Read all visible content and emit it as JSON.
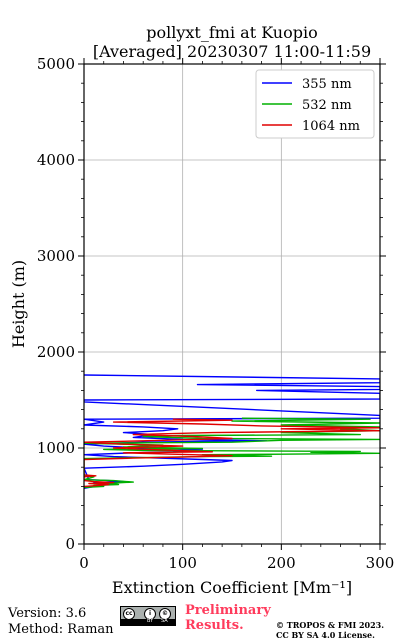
{
  "chart_data": {
    "type": "line",
    "title_lines": [
      "pollyxt_fmi at Kuopio",
      "[Averaged] 20230307 11:00-11:59"
    ],
    "xlabel": "Extinction Coefficient [Mm⁻¹]",
    "ylabel": "Height (m)",
    "xlim": [
      0,
      300
    ],
    "ylim": [
      0,
      5000
    ],
    "x_ticks": [
      0,
      100,
      200,
      300
    ],
    "y_ticks": [
      0,
      1000,
      2000,
      3000,
      4000,
      5000
    ],
    "x_tick_labels": [
      "0",
      "100",
      "200",
      "300"
    ],
    "y_tick_labels": [
      "0",
      "1000",
      "2000",
      "3000",
      "4000",
      "5000"
    ],
    "grid": true,
    "legend_position": "top-right",
    "series": [
      {
        "name": "355 nm",
        "color": "#0000ff",
        "points": [
          [
            0,
            580
          ],
          [
            8,
            595
          ],
          [
            15,
            610
          ],
          [
            25,
            620
          ],
          [
            18,
            630
          ],
          [
            10,
            640
          ],
          [
            40,
            650
          ],
          [
            25,
            660
          ],
          [
            5,
            670
          ],
          [
            0,
            790
          ],
          [
            30,
            800
          ],
          [
            60,
            810
          ],
          [
            100,
            830
          ],
          [
            140,
            855
          ],
          [
            150,
            870
          ],
          [
            120,
            880
          ],
          [
            60,
            900
          ],
          [
            30,
            910
          ],
          [
            0,
            930
          ],
          [
            50,
            950
          ],
          [
            90,
            960
          ],
          [
            120,
            980
          ],
          [
            60,
            1000
          ],
          [
            20,
            1020
          ],
          [
            0,
            1040
          ],
          [
            60,
            1060
          ],
          [
            120,
            1070
          ],
          [
            185,
            1075
          ],
          [
            100,
            1090
          ],
          [
            50,
            1110
          ],
          [
            70,
            1140
          ],
          [
            40,
            1160
          ],
          [
            80,
            1180
          ],
          [
            95,
            1200
          ],
          [
            60,
            1220
          ],
          [
            0,
            1240
          ],
          [
            20,
            1270
          ],
          [
            0,
            1300
          ],
          [
            300,
            1310
          ],
          [
            300,
            1340
          ],
          [
            0,
            1480
          ],
          [
            0,
            1500
          ],
          [
            300,
            1510
          ],
          [
            300,
            1570
          ],
          [
            175,
            1600
          ],
          [
            300,
            1610
          ],
          [
            300,
            1640
          ],
          [
            115,
            1660
          ],
          [
            300,
            1680
          ],
          [
            300,
            1720
          ],
          [
            0,
            1760
          ]
        ]
      },
      {
        "name": "532 nm",
        "color": "#00b000",
        "points": [
          [
            0,
            590
          ],
          [
            20,
            600
          ],
          [
            10,
            610
          ],
          [
            35,
            620
          ],
          [
            20,
            630
          ],
          [
            50,
            645
          ],
          [
            30,
            660
          ],
          [
            0,
            670
          ],
          [
            10,
            700
          ],
          [
            0,
            720
          ],
          [
            0,
            890
          ],
          [
            60,
            900
          ],
          [
            120,
            910
          ],
          [
            190,
            915
          ],
          [
            120,
            930
          ],
          [
            200,
            935
          ],
          [
            300,
            945
          ],
          [
            230,
            955
          ],
          [
            280,
            965
          ],
          [
            60,
            975
          ],
          [
            20,
            985
          ],
          [
            120,
            995
          ],
          [
            40,
            1010
          ],
          [
            80,
            1030
          ],
          [
            0,
            1050
          ],
          [
            150,
            1060
          ],
          [
            200,
            1080
          ],
          [
            300,
            1090
          ],
          [
            120,
            1100
          ],
          [
            60,
            1120
          ],
          [
            100,
            1130
          ],
          [
            280,
            1140
          ],
          [
            200,
            1160
          ],
          [
            300,
            1180
          ],
          [
            260,
            1200
          ],
          [
            300,
            1220
          ],
          [
            200,
            1240
          ],
          [
            300,
            1260
          ],
          [
            150,
            1280
          ],
          [
            290,
            1300
          ],
          [
            160,
            1310
          ]
        ]
      },
      {
        "name": "1064 nm",
        "color": "#e00000",
        "points": [
          [
            0,
            600
          ],
          [
            15,
            610
          ],
          [
            25,
            620
          ],
          [
            5,
            630
          ],
          [
            30,
            640
          ],
          [
            10,
            650
          ],
          [
            0,
            660
          ],
          [
            0,
            700
          ],
          [
            12,
            710
          ],
          [
            0,
            720
          ],
          [
            0,
            880
          ],
          [
            50,
            895
          ],
          [
            100,
            905
          ],
          [
            150,
            920
          ],
          [
            90,
            935
          ],
          [
            40,
            950
          ],
          [
            130,
            960
          ],
          [
            80,
            980
          ],
          [
            30,
            1000
          ],
          [
            100,
            1020
          ],
          [
            40,
            1040
          ],
          [
            0,
            1060
          ],
          [
            80,
            1080
          ],
          [
            150,
            1100
          ],
          [
            110,
            1120
          ],
          [
            50,
            1140
          ],
          [
            130,
            1160
          ],
          [
            300,
            1180
          ],
          [
            200,
            1200
          ],
          [
            300,
            1210
          ],
          [
            180,
            1230
          ],
          [
            120,
            1250
          ],
          [
            30,
            1270
          ],
          [
            150,
            1290
          ],
          [
            90,
            1300
          ]
        ]
      }
    ]
  },
  "footer": {
    "version": "Version: 3.6",
    "method": "Method: Raman",
    "preliminary_line1": "Preliminary",
    "preliminary_line2": "Results.",
    "copyright_line1": "© TROPOS & FMI 2023.",
    "copyright_line2": "CC BY SA 4.0 License.",
    "license_badge_text": [
      "cc",
      "i",
      "©",
      "BY",
      "SA"
    ]
  }
}
